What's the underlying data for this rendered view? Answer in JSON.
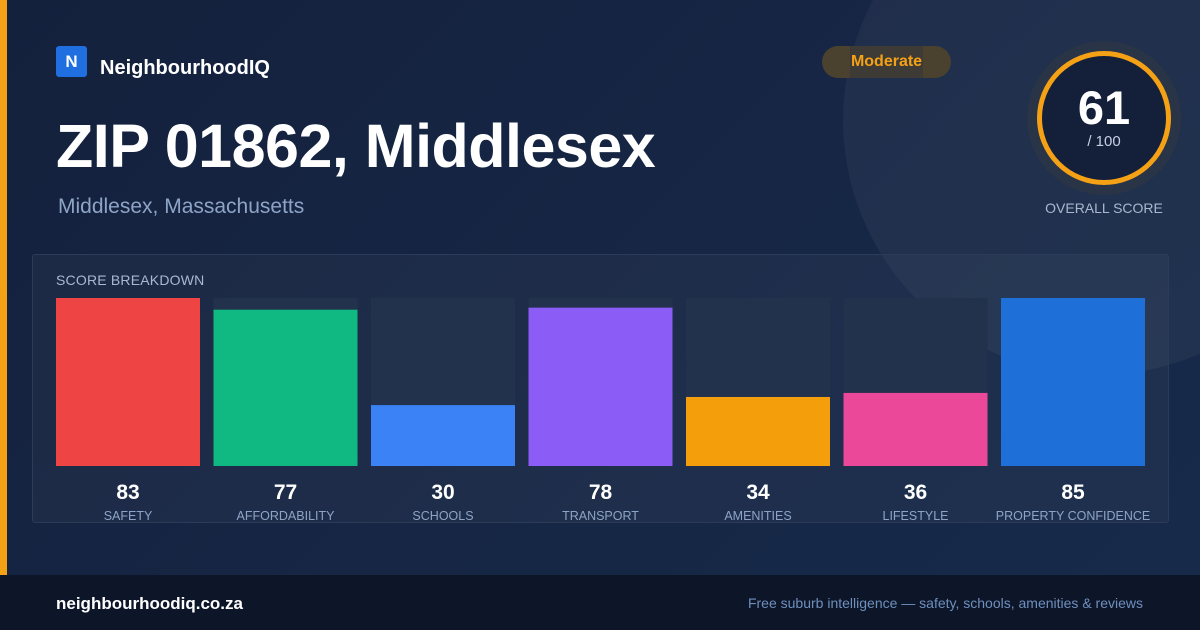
{
  "brand": {
    "logo_letter": "N",
    "name": "NeighbourhoodIQ"
  },
  "header": {
    "title": "ZIP 01862, Middlesex",
    "subtitle": "Middlesex, Massachusetts",
    "badge": "Moderate"
  },
  "overall": {
    "score": "61",
    "max": "/ 100",
    "label": "OVERALL SCORE",
    "value": 61,
    "accent_color": "#f5a116"
  },
  "breakdown": {
    "label": "SCORE BREAKDOWN"
  },
  "chart_data": {
    "type": "bar",
    "title": "SCORE BREAKDOWN",
    "categories": [
      "SAFETY",
      "AFFORDABILITY",
      "SCHOOLS",
      "TRANSPORT",
      "AMENITIES",
      "LIFESTYLE",
      "PROPERTY CONFIDENCE"
    ],
    "values": [
      83,
      77,
      30,
      78,
      34,
      36,
      85
    ],
    "colors": [
      "#ef4444",
      "#10b981",
      "#3b82f6",
      "#8b5cf6",
      "#f59e0b",
      "#ec4899",
      "#1f6fd8"
    ],
    "ylim": [
      0,
      100
    ],
    "data_labels": true,
    "grid": false
  },
  "footer": {
    "url": "neighbourhoodiq.co.za",
    "tagline": "Free suburb intelligence — safety, schools, amenities & reviews"
  }
}
